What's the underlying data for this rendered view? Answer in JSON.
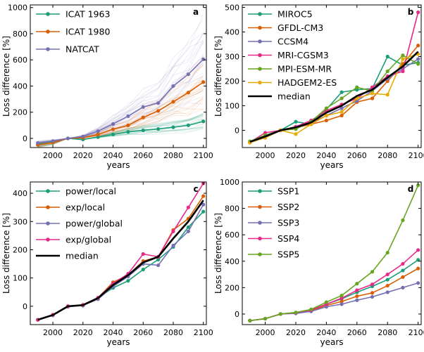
{
  "chart_data": [
    {
      "panel": "a",
      "type": "line",
      "xlabel": "years",
      "ylabel": "Loss difference [%]",
      "xlim": [
        1985,
        2102
      ],
      "ylim": [
        -70,
        1020
      ],
      "xticks": [
        2000,
        2020,
        2040,
        2060,
        2080,
        2100
      ],
      "yticks": [
        0,
        200,
        400,
        600,
        800,
        1000
      ],
      "x": [
        1990,
        2000,
        2010,
        2020,
        2030,
        2040,
        2050,
        2060,
        2070,
        2080,
        2090,
        2100
      ],
      "legend_position": "top-left",
      "series": [
        {
          "name": "ICAT 1963",
          "color": "#1b9e77",
          "values": [
            -45,
            -30,
            0,
            -8,
            10,
            30,
            50,
            62,
            72,
            85,
            100,
            130
          ]
        },
        {
          "name": "ICAT 1980",
          "color": "#d95f02",
          "values": [
            -50,
            -32,
            0,
            5,
            30,
            70,
            100,
            160,
            210,
            280,
            350,
            430
          ]
        },
        {
          "name": "NATCAT",
          "color": "#7570b3",
          "values": [
            -35,
            -20,
            0,
            15,
            55,
            110,
            170,
            240,
            270,
            400,
            490,
            605
          ]
        }
      ],
      "spaghetti_note": "faint individual model runs around each series"
    },
    {
      "panel": "b",
      "type": "line",
      "xlabel": "years",
      "ylabel": "Loss difference [%]",
      "xlim": [
        1985,
        2102
      ],
      "ylim": [
        -70,
        510
      ],
      "xticks": [
        2000,
        2020,
        2040,
        2060,
        2080,
        2100
      ],
      "yticks": [
        0,
        100,
        200,
        300,
        400,
        500
      ],
      "x": [
        1990,
        2000,
        2010,
        2020,
        2030,
        2040,
        2050,
        2060,
        2070,
        2080,
        2090,
        2100
      ],
      "legend_position": "top-left",
      "series": [
        {
          "name": "MIROC5",
          "color": "#1b9e77",
          "values": [
            -45,
            -20,
            0,
            35,
            25,
            85,
            155,
            165,
            170,
            300,
            265,
            275
          ]
        },
        {
          "name": "GFDL-CM3",
          "color": "#d95f02",
          "values": [
            -50,
            -25,
            0,
            10,
            25,
            40,
            60,
            115,
            130,
            200,
            270,
            345
          ]
        },
        {
          "name": "CCSM4",
          "color": "#7570b3",
          "values": [
            -48,
            -30,
            0,
            10,
            30,
            60,
            90,
            120,
            160,
            210,
            250,
            290
          ]
        },
        {
          "name": "MRI-CGSM3",
          "color": "#e7298a",
          "values": [
            -48,
            -10,
            0,
            15,
            40,
            80,
            105,
            130,
            175,
            220,
            240,
            480
          ]
        },
        {
          "name": "MPI-ESM-MR",
          "color": "#66a61e",
          "values": [
            -45,
            -20,
            0,
            5,
            35,
            90,
            130,
            175,
            160,
            240,
            305,
            270
          ]
        },
        {
          "name": "HADGEM2-ES",
          "color": "#e6ab02",
          "values": [
            -50,
            -30,
            0,
            -15,
            25,
            60,
            75,
            130,
            150,
            145,
            290,
            310
          ]
        },
        {
          "name": "median",
          "color": "#000000",
          "values": [
            -47,
            -25,
            0,
            12,
            32,
            72,
            100,
            140,
            165,
            215,
            260,
            320
          ]
        }
      ]
    },
    {
      "panel": "c",
      "type": "line",
      "xlabel": "years",
      "ylabel": "Loss difference [%]",
      "xlim": [
        1985,
        2102
      ],
      "ylim": [
        -65,
        440
      ],
      "xticks": [
        2000,
        2020,
        2040,
        2060,
        2080,
        2100
      ],
      "yticks": [
        0,
        100,
        200,
        300,
        400
      ],
      "x": [
        1990,
        2000,
        2010,
        2020,
        2030,
        2040,
        2050,
        2060,
        2070,
        2080,
        2090,
        2100
      ],
      "legend_position": "top-left",
      "series": [
        {
          "name": "power/local",
          "color": "#1b9e77",
          "values": [
            -48,
            -32,
            0,
            2,
            30,
            65,
            90,
            130,
            165,
            210,
            280,
            335
          ]
        },
        {
          "name": "exp/local",
          "color": "#d95f02",
          "values": [
            -48,
            -30,
            0,
            5,
            30,
            85,
            110,
            160,
            175,
            270,
            310,
            390
          ]
        },
        {
          "name": "power/global",
          "color": "#7570b3",
          "values": [
            -48,
            -32,
            -2,
            3,
            25,
            70,
            105,
            150,
            145,
            215,
            265,
            360
          ]
        },
        {
          "name": "exp/global",
          "color": "#e7298a",
          "values": [
            -48,
            -30,
            0,
            5,
            30,
            80,
            115,
            185,
            175,
            265,
            350,
            435
          ]
        },
        {
          "name": "median",
          "color": "#000000",
          "values": [
            -48,
            -31,
            0,
            4,
            29,
            75,
            110,
            155,
            175,
            240,
            300,
            375
          ]
        }
      ]
    },
    {
      "panel": "d",
      "type": "line",
      "xlabel": "years",
      "ylabel": "Loss difference [%]",
      "xlim": [
        1985,
        2102
      ],
      "ylim": [
        -80,
        1000
      ],
      "xticks": [
        2000,
        2020,
        2040,
        2060,
        2080,
        2100
      ],
      "yticks": [
        0,
        200,
        400,
        600,
        800,
        1000
      ],
      "x": [
        1990,
        2000,
        2010,
        2020,
        2030,
        2040,
        2050,
        2060,
        2070,
        2080,
        2090,
        2100
      ],
      "legend_position": "top-left",
      "series": [
        {
          "name": "SSP1",
          "color": "#1b9e77",
          "values": [
            -50,
            -35,
            0,
            10,
            30,
            75,
            115,
            165,
            210,
            260,
            330,
            410
          ]
        },
        {
          "name": "SSP2",
          "color": "#d95f02",
          "values": [
            -50,
            -35,
            0,
            8,
            25,
            65,
            95,
            135,
            160,
            215,
            280,
            345
          ]
        },
        {
          "name": "SSP3",
          "color": "#7570b3",
          "values": [
            -50,
            -35,
            0,
            5,
            20,
            55,
            75,
            105,
            130,
            165,
            200,
            235
          ]
        },
        {
          "name": "SSP4",
          "color": "#e7298a",
          "values": [
            -50,
            -35,
            0,
            10,
            30,
            75,
            120,
            180,
            225,
            300,
            380,
            485
          ]
        },
        {
          "name": "SSP5",
          "color": "#66a61e",
          "values": [
            -50,
            -35,
            0,
            12,
            35,
            90,
            140,
            230,
            320,
            465,
            710,
            975
          ]
        }
      ]
    }
  ]
}
